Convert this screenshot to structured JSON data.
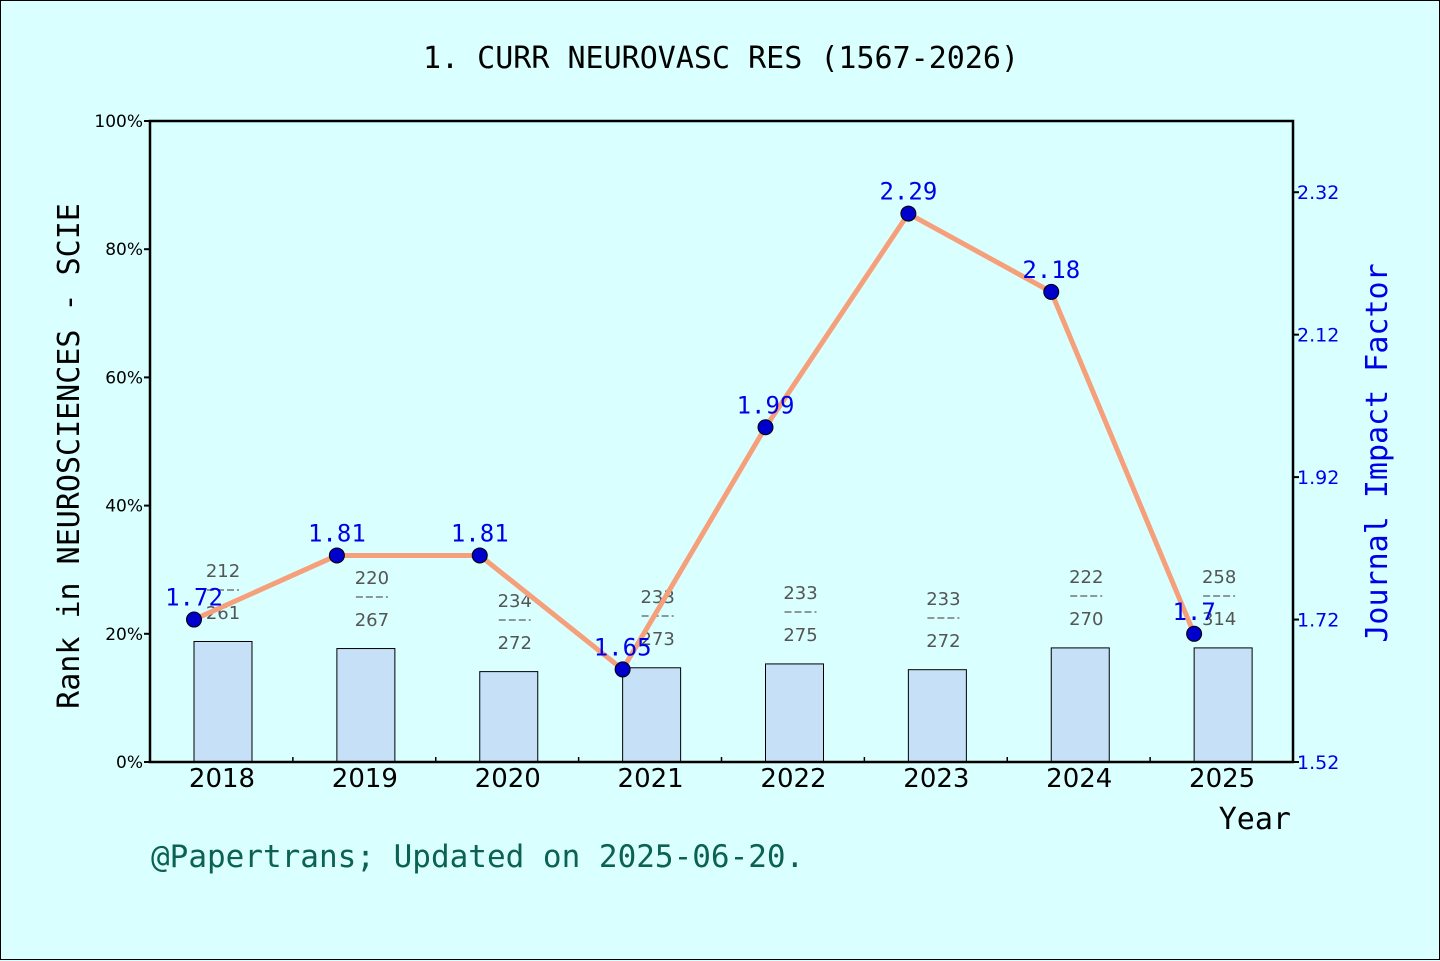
{
  "page": {
    "background": "#d9ffff",
    "footer": "@Papertrans; Updated on 2025-06-20."
  },
  "chart_data": {
    "type": "bar",
    "title": "1. CURR NEUROVASC RES (1567-2026)",
    "xlabel": "Year",
    "ylabel_left": "Rank in NEUROSCIENCES - SCIE",
    "ylabel_right": "Journal Impact Factor",
    "categories": [
      "2018",
      "2019",
      "2020",
      "2021",
      "2022",
      "2023",
      "2024",
      "2025"
    ],
    "left_axis": {
      "ylim": [
        0,
        100
      ],
      "ticks": [
        0,
        20,
        40,
        60,
        80,
        100
      ],
      "tick_labels": [
        "0%",
        "20%",
        "40%",
        "60%",
        "80%",
        "100%"
      ]
    },
    "right_axis": {
      "ylim": [
        1.52,
        2.42
      ],
      "ticks": [
        1.52,
        1.72,
        1.92,
        2.12,
        2.32
      ],
      "tick_labels": [
        "1.52",
        "1.72",
        "1.92",
        "2.12",
        "2.32"
      ]
    },
    "series": [
      {
        "kind": "bar",
        "axis": "left",
        "color": "#c6e0f7",
        "rank": [
          212,
          220,
          234,
          233,
          233,
          233,
          222,
          258
        ],
        "total": [
          261,
          267,
          272,
          273,
          275,
          272,
          270,
          314
        ],
        "values": [
          18.8,
          17.7,
          14.1,
          14.7,
          15.3,
          14.4,
          17.8,
          17.8
        ]
      },
      {
        "kind": "line",
        "axis": "right",
        "line_color": "#f5a07a",
        "marker_color": "#0000cc",
        "values": [
          1.72,
          1.81,
          1.81,
          1.65,
          1.99,
          2.29,
          2.18,
          1.7
        ],
        "labels": [
          "1.72",
          "1.81",
          "1.81",
          "1.65",
          "1.99",
          "2.29",
          "2.18",
          "1.7"
        ]
      }
    ]
  }
}
